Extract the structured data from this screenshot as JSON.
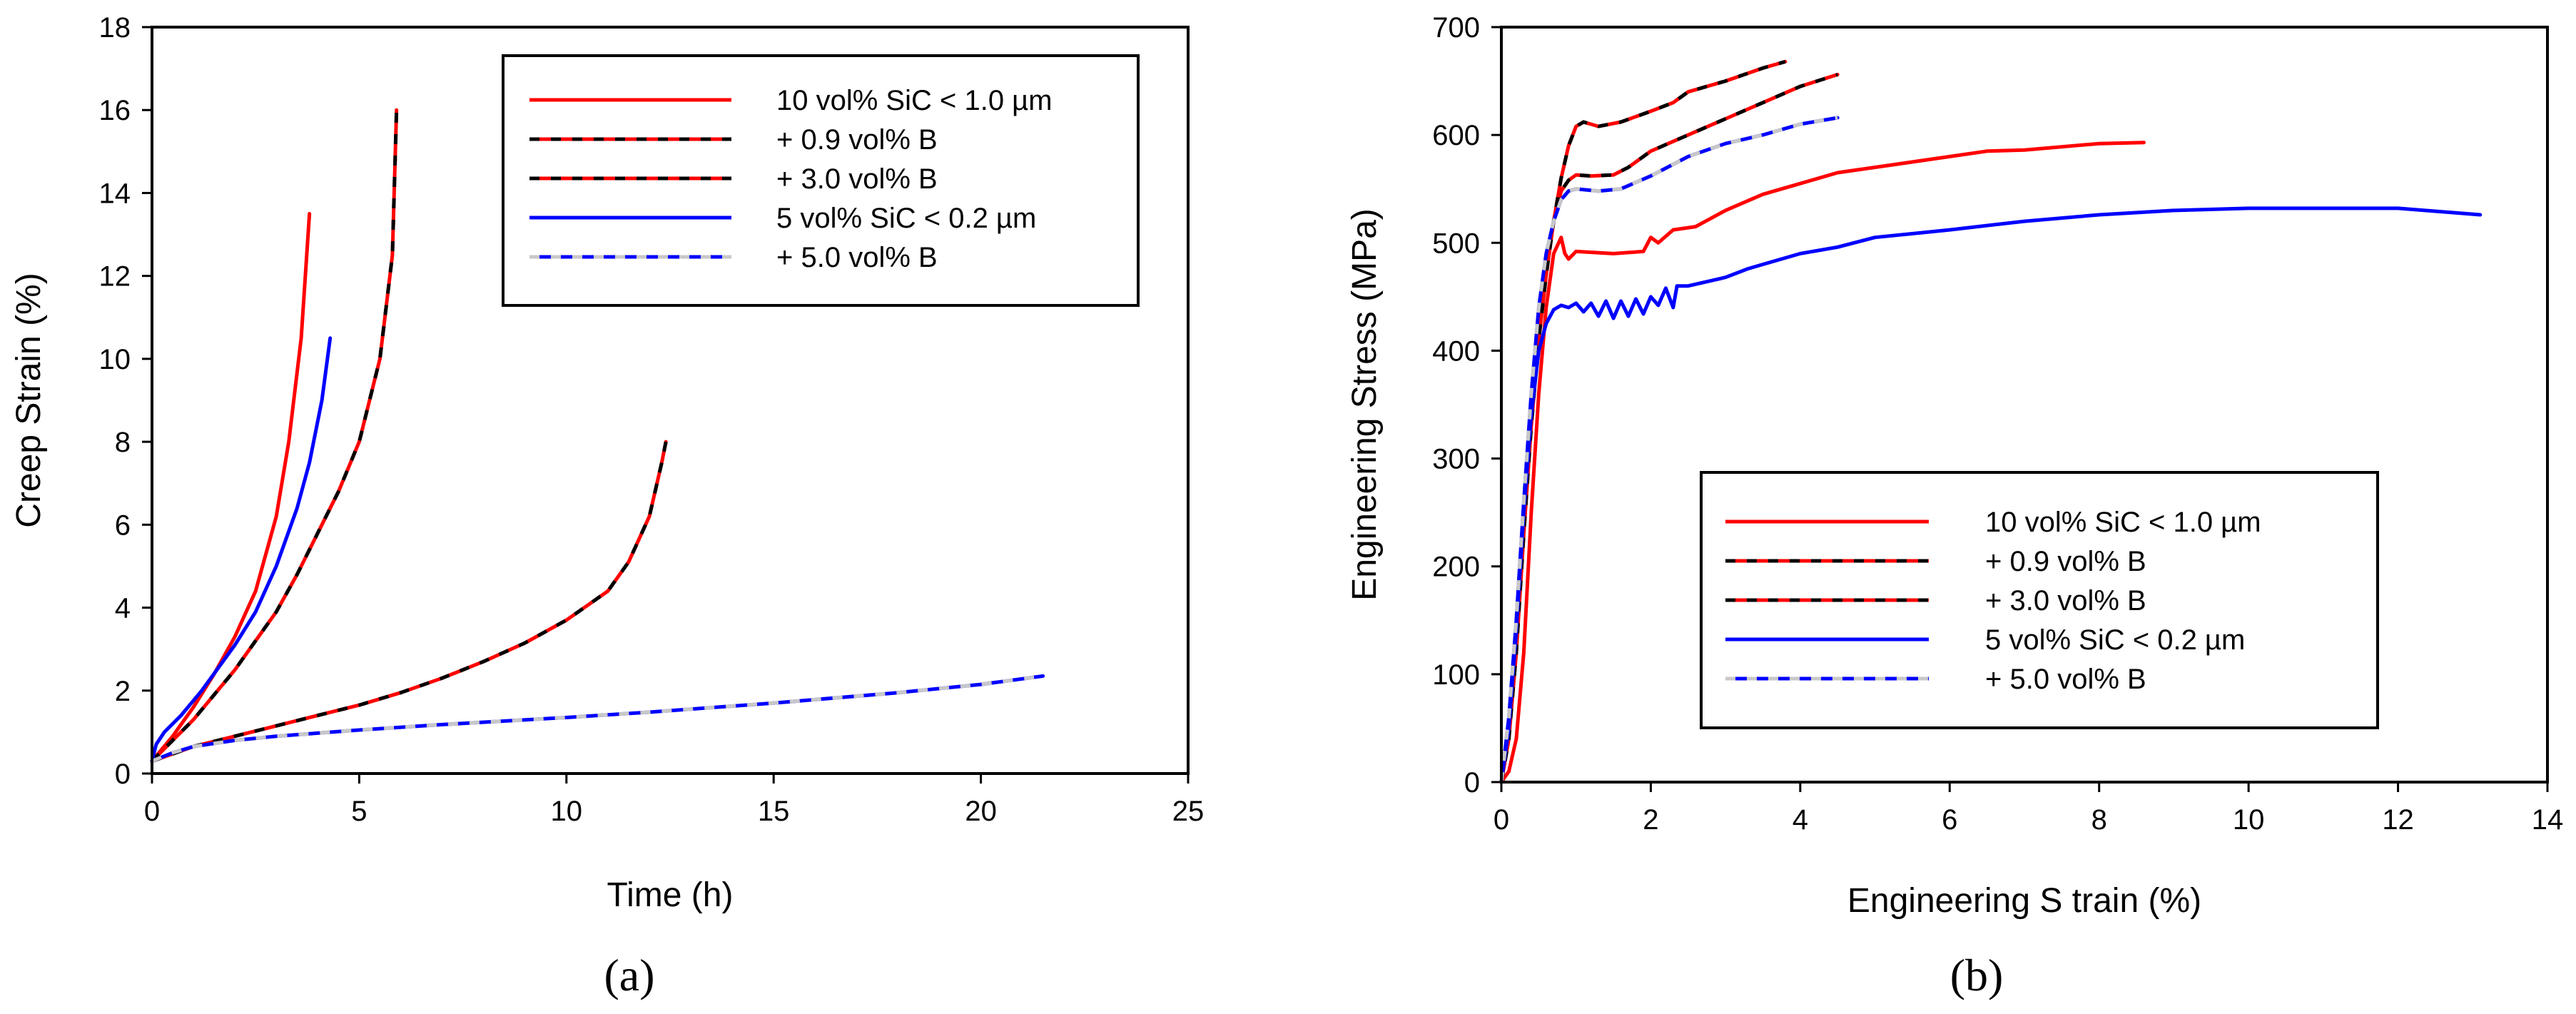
{
  "figure_labels": {
    "a": "(a)",
    "b": "(b)"
  },
  "chart_data": [
    {
      "id": "a",
      "type": "line",
      "xlabel": "Time (h)",
      "ylabel": "Creep Strain (%)",
      "xlim": [
        0,
        25
      ],
      "ylim": [
        0,
        18
      ],
      "xticks": [
        0,
        5,
        10,
        15,
        20,
        25
      ],
      "yticks": [
        0,
        2,
        4,
        6,
        8,
        10,
        12,
        14,
        16,
        18
      ],
      "grid": false,
      "legend_position": "top-right",
      "series": [
        {
          "name": "10 vol% SiC < 1.0 µm",
          "color": "#ff0000",
          "style": "solid",
          "points": [
            [
              0,
              0.3
            ],
            [
              0.5,
              0.9
            ],
            [
              1,
              1.6
            ],
            [
              1.5,
              2.4
            ],
            [
              2,
              3.3
            ],
            [
              2.5,
              4.4
            ],
            [
              3,
              6.2
            ],
            [
              3.3,
              8
            ],
            [
              3.6,
              10.5
            ],
            [
              3.8,
              13.5
            ]
          ]
        },
        {
          "name": "+ 0.9 vol% B",
          "color": "#ff0000",
          "dash_color": "#000000",
          "style": "dashed",
          "points": [
            [
              0,
              0.3
            ],
            [
              0.5,
              0.8
            ],
            [
              1,
              1.3
            ],
            [
              1.5,
              1.9
            ],
            [
              2,
              2.5
            ],
            [
              2.5,
              3.2
            ],
            [
              3,
              3.9
            ],
            [
              3.5,
              4.8
            ],
            [
              4,
              5.8
            ],
            [
              4.5,
              6.8
            ],
            [
              5,
              8
            ],
            [
              5.5,
              10
            ],
            [
              5.8,
              12.5
            ],
            [
              5.9,
              16
            ]
          ]
        },
        {
          "name": "+ 3.0 vol% B",
          "color": "#ff0000",
          "dash_color": "#000000",
          "style": "dashed",
          "points": [
            [
              0,
              0.3
            ],
            [
              1,
              0.65
            ],
            [
              2,
              0.9
            ],
            [
              3,
              1.15
            ],
            [
              4,
              1.4
            ],
            [
              5,
              1.65
            ],
            [
              6,
              1.95
            ],
            [
              7,
              2.3
            ],
            [
              8,
              2.7
            ],
            [
              9,
              3.15
            ],
            [
              10,
              3.7
            ],
            [
              11,
              4.4
            ],
            [
              11.5,
              5.1
            ],
            [
              12,
              6.2
            ],
            [
              12.3,
              7.5
            ],
            [
              12.4,
              8
            ]
          ]
        },
        {
          "name": "5 vol% SiC < 0.2 µm",
          "color": "#0000ff",
          "style": "solid",
          "points": [
            [
              0,
              0.3
            ],
            [
              0.1,
              0.7
            ],
            [
              0.3,
              1
            ],
            [
              0.7,
              1.4
            ],
            [
              1.2,
              2
            ],
            [
              2,
              3.1
            ],
            [
              2.5,
              3.9
            ],
            [
              3,
              5
            ],
            [
              3.5,
              6.4
            ],
            [
              3.8,
              7.5
            ],
            [
              4.1,
              9
            ],
            [
              4.3,
              10.5
            ]
          ]
        },
        {
          "name": "+ 5.0 vol% B",
          "color": "#0000ff",
          "dash_color": "#c8c8c8",
          "style": "dashed",
          "points": [
            [
              0,
              0.3
            ],
            [
              0.5,
              0.5
            ],
            [
              1,
              0.65
            ],
            [
              2,
              0.8
            ],
            [
              3,
              0.9
            ],
            [
              5,
              1.05
            ],
            [
              7,
              1.18
            ],
            [
              10,
              1.35
            ],
            [
              12,
              1.48
            ],
            [
              15,
              1.7
            ],
            [
              18,
              1.95
            ],
            [
              20,
              2.15
            ],
            [
              21.5,
              2.35
            ]
          ]
        }
      ]
    },
    {
      "id": "b",
      "type": "line",
      "xlabel": "Engineering S train (%)",
      "ylabel": "Engineering Stress (MPa)",
      "xlim": [
        0,
        14
      ],
      "ylim": [
        0,
        700
      ],
      "xticks": [
        0,
        2,
        4,
        6,
        8,
        10,
        12,
        14
      ],
      "yticks": [
        0,
        100,
        200,
        300,
        400,
        500,
        600,
        700
      ],
      "grid": false,
      "legend_position": "bottom-right",
      "series": [
        {
          "name": "10 vol% SiC < 1.0 µm",
          "color": "#ff0000",
          "style": "solid",
          "points": [
            [
              0,
              0
            ],
            [
              0.1,
              10
            ],
            [
              0.2,
              40
            ],
            [
              0.3,
              120
            ],
            [
              0.4,
              250
            ],
            [
              0.5,
              360
            ],
            [
              0.6,
              440
            ],
            [
              0.7,
              490
            ],
            [
              0.8,
              505
            ],
            [
              0.85,
              490
            ],
            [
              0.9,
              485
            ],
            [
              1,
              492
            ],
            [
              1.5,
              490
            ],
            [
              1.9,
              492
            ],
            [
              2,
              505
            ],
            [
              2.1,
              500
            ],
            [
              2.3,
              512
            ],
            [
              2.6,
              515
            ],
            [
              3,
              530
            ],
            [
              3.5,
              545
            ],
            [
              4,
              555
            ],
            [
              4.5,
              565
            ],
            [
              5,
              570
            ],
            [
              6,
              580
            ],
            [
              6.5,
              585
            ],
            [
              7,
              586
            ],
            [
              8,
              592
            ],
            [
              8.6,
              593
            ]
          ]
        },
        {
          "name": "+ 0.9 vol% B",
          "color": "#ff0000",
          "dash_color": "#000000",
          "style": "dashed",
          "points": [
            [
              0,
              0
            ],
            [
              0.1,
              40
            ],
            [
              0.2,
              120
            ],
            [
              0.3,
              230
            ],
            [
              0.4,
              330
            ],
            [
              0.5,
              410
            ],
            [
              0.6,
              470
            ],
            [
              0.7,
              520
            ],
            [
              0.8,
              560
            ],
            [
              0.9,
              590
            ],
            [
              1,
              608
            ],
            [
              1.1,
              612
            ],
            [
              1.3,
              608
            ],
            [
              1.6,
              612
            ],
            [
              2,
              622
            ],
            [
              2.3,
              630
            ],
            [
              2.5,
              640
            ],
            [
              3,
              650
            ],
            [
              3.5,
              662
            ],
            [
              3.8,
              668
            ]
          ]
        },
        {
          "name": "+ 3.0 vol% B",
          "color": "#ff0000",
          "dash_color": "#000000",
          "style": "dashed",
          "points": [
            [
              0,
              0
            ],
            [
              0.1,
              50
            ],
            [
              0.2,
              130
            ],
            [
              0.3,
              240
            ],
            [
              0.4,
              340
            ],
            [
              0.5,
              420
            ],
            [
              0.6,
              480
            ],
            [
              0.7,
              520
            ],
            [
              0.8,
              548
            ],
            [
              0.9,
              558
            ],
            [
              1,
              563
            ],
            [
              1.2,
              562
            ],
            [
              1.5,
              563
            ],
            [
              1.7,
              570
            ],
            [
              2,
              585
            ],
            [
              2.5,
              600
            ],
            [
              3,
              615
            ],
            [
              3.5,
              630
            ],
            [
              4,
              645
            ],
            [
              4.5,
              656
            ]
          ]
        },
        {
          "name": "5 vol% SiC < 0.2 µm",
          "color": "#0000ff",
          "style": "solid",
          "points": [
            [
              0,
              0
            ],
            [
              0.1,
              50
            ],
            [
              0.2,
              140
            ],
            [
              0.3,
              250
            ],
            [
              0.4,
              340
            ],
            [
              0.5,
              400
            ],
            [
              0.6,
              425
            ],
            [
              0.7,
              438
            ],
            [
              0.8,
              442
            ],
            [
              0.9,
              440
            ],
            [
              1,
              444
            ],
            [
              1.1,
              436
            ],
            [
              1.2,
              444
            ],
            [
              1.3,
              432
            ],
            [
              1.4,
              446
            ],
            [
              1.5,
              430
            ],
            [
              1.6,
              446
            ],
            [
              1.7,
              432
            ],
            [
              1.8,
              448
            ],
            [
              1.9,
              434
            ],
            [
              2,
              450
            ],
            [
              2.1,
              442
            ],
            [
              2.2,
              458
            ],
            [
              2.3,
              440
            ],
            [
              2.35,
              460
            ],
            [
              2.5,
              460
            ],
            [
              3,
              468
            ],
            [
              3.3,
              476
            ],
            [
              3.5,
              480
            ],
            [
              4,
              490
            ],
            [
              4.5,
              496
            ],
            [
              5,
              505
            ],
            [
              6,
              512
            ],
            [
              7,
              520
            ],
            [
              8,
              526
            ],
            [
              9,
              530
            ],
            [
              10,
              532
            ],
            [
              11,
              532
            ],
            [
              12,
              532
            ],
            [
              13.1,
              526
            ]
          ]
        },
        {
          "name": "+ 5.0 vol% B",
          "color": "#0000ff",
          "dash_color": "#c8c8c8",
          "style": "dashed",
          "points": [
            [
              0,
              0
            ],
            [
              0.1,
              60
            ],
            [
              0.2,
              150
            ],
            [
              0.3,
              260
            ],
            [
              0.4,
              360
            ],
            [
              0.5,
              440
            ],
            [
              0.6,
              490
            ],
            [
              0.7,
              520
            ],
            [
              0.8,
              540
            ],
            [
              0.9,
              548
            ],
            [
              1,
              550
            ],
            [
              1.3,
              548
            ],
            [
              1.6,
              550
            ],
            [
              2,
              562
            ],
            [
              2.5,
              580
            ],
            [
              3,
              592
            ],
            [
              3.5,
              600
            ],
            [
              4,
              610
            ],
            [
              4.5,
              616
            ]
          ]
        }
      ]
    }
  ]
}
